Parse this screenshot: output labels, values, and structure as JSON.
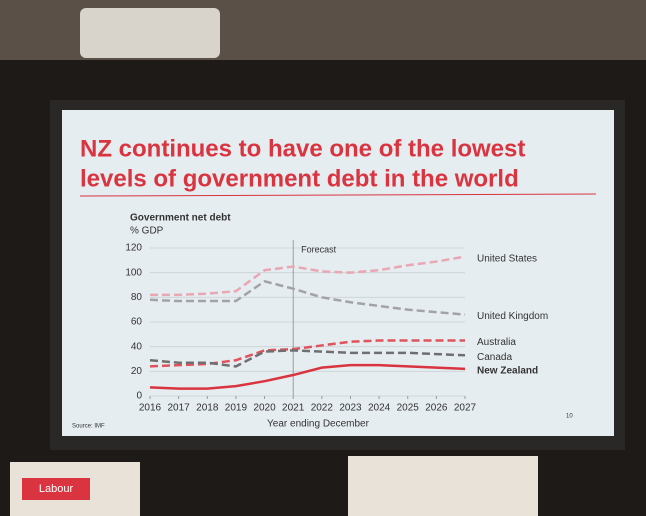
{
  "chart_data": {
    "type": "line",
    "title": "NZ continues to have one of the lowest levels of government debt in the world",
    "y_label": "Government net debt",
    "y_unit": "% GDP",
    "x_label": "Year ending December",
    "annotation": "Forecast",
    "forecast_x": 2021,
    "source": "Source: IMF",
    "page_number": "10",
    "logo": "Labour",
    "x": [
      2016,
      2017,
      2018,
      2019,
      2020,
      2021,
      2022,
      2023,
      2024,
      2025,
      2026,
      2027
    ],
    "xlim": [
      2016,
      2027
    ],
    "xticks": [
      2016,
      2017,
      2018,
      2019,
      2020,
      2021,
      2022,
      2023,
      2024,
      2025,
      2026,
      2027
    ],
    "ylim": [
      0,
      120
    ],
    "yticks": [
      0,
      20,
      40,
      60,
      80,
      100,
      120
    ],
    "grid": true,
    "series": [
      {
        "name": "United States",
        "color": "#e9a7b4",
        "dashed": true,
        "values": [
          82,
          82,
          83,
          85,
          102,
          105,
          101,
          100,
          102,
          106,
          109,
          113
        ]
      },
      {
        "name": "United Kingdom",
        "color": "#a2a2aa",
        "dashed": true,
        "values": [
          78,
          77,
          77,
          77,
          93,
          87,
          80,
          76,
          73,
          70,
          68,
          66
        ]
      },
      {
        "name": "Australia",
        "color": "#e0525c",
        "dashed": true,
        "values": [
          24,
          25,
          26,
          29,
          37,
          38,
          41,
          44,
          45,
          45,
          45,
          45
        ]
      },
      {
        "name": "Canada",
        "color": "#6f6f72",
        "dashed": true,
        "values": [
          29,
          27,
          27,
          24,
          36,
          37,
          36,
          35,
          35,
          35,
          34,
          33
        ]
      },
      {
        "name": "New Zealand",
        "color": "#d9343f",
        "dashed": false,
        "values": [
          7,
          6,
          6,
          8,
          12,
          17,
          23,
          25,
          25,
          24,
          23,
          22
        ]
      }
    ]
  }
}
